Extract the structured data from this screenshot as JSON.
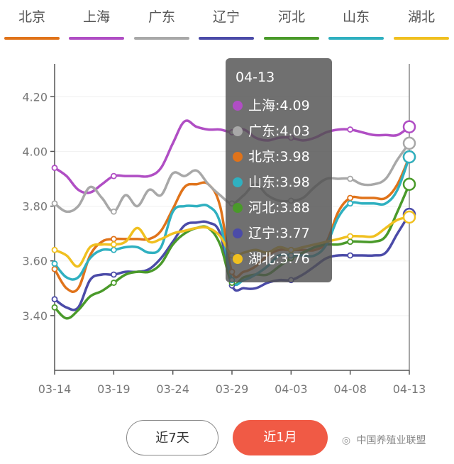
{
  "legend": [
    {
      "name": "北京",
      "color": "#e0731a"
    },
    {
      "name": "上海",
      "color": "#b04ec4"
    },
    {
      "name": "广东",
      "color": "#a8a8a8"
    },
    {
      "name": "辽宁",
      "color": "#4b4ba8"
    },
    {
      "name": "河北",
      "color": "#4a9a2a"
    },
    {
      "name": "山东",
      "color": "#2fb0c0"
    },
    {
      "name": "湖北",
      "color": "#f0c020"
    }
  ],
  "tooltip": {
    "date": "04-13",
    "rows": [
      {
        "text": "上海:4.09",
        "color": "#b04ec4"
      },
      {
        "text": "广东:4.03",
        "color": "#a8a8a8"
      },
      {
        "text": "北京:3.98",
        "color": "#e0731a"
      },
      {
        "text": "山东:3.98",
        "color": "#2fb0c0"
      },
      {
        "text": "河北:3.88",
        "color": "#4a9a2a"
      },
      {
        "text": "辽宁:3.77",
        "color": "#4b4ba8"
      },
      {
        "text": "湖北:3.76",
        "color": "#f0c020"
      }
    ]
  },
  "buttons": {
    "week": "近7天",
    "month": "近1月"
  },
  "watermark": "中国养殖业联盟",
  "chart_data": {
    "type": "line",
    "title": "",
    "xlabel": "",
    "ylabel": "",
    "ylim": [
      3.2,
      4.32
    ],
    "yticks": [
      "3.40",
      "3.60",
      "3.80",
      "4.00",
      "4.20"
    ],
    "y_ticks": [
      3.4,
      3.6,
      3.8,
      4.0,
      4.2
    ],
    "xtick_labels": [
      "03-14",
      "03-19",
      "03-24",
      "03-29",
      "04-03",
      "04-08",
      "04-13"
    ],
    "x": [
      "03-14",
      "03-15",
      "03-16",
      "03-17",
      "03-18",
      "03-19",
      "03-20",
      "03-21",
      "03-22",
      "03-23",
      "03-24",
      "03-25",
      "03-26",
      "03-27",
      "03-28",
      "03-29",
      "03-30",
      "03-31",
      "04-01",
      "04-02",
      "04-03",
      "04-04",
      "04-05",
      "04-06",
      "04-07",
      "04-08",
      "04-09",
      "04-10",
      "04-11",
      "04-12",
      "04-13"
    ],
    "series": [
      {
        "name": "北京",
        "color": "#e0731a",
        "values": [
          3.57,
          3.5,
          3.5,
          3.62,
          3.67,
          3.68,
          3.68,
          3.68,
          3.68,
          3.71,
          3.79,
          3.87,
          3.88,
          3.88,
          3.8,
          3.56,
          3.56,
          3.58,
          3.62,
          3.64,
          3.64,
          3.64,
          3.64,
          3.67,
          3.78,
          3.83,
          3.83,
          3.83,
          3.83,
          3.88,
          3.98
        ]
      },
      {
        "name": "上海",
        "color": "#b04ec4",
        "values": [
          3.94,
          3.91,
          3.86,
          3.85,
          3.88,
          3.91,
          3.91,
          3.91,
          3.91,
          3.94,
          4.03,
          4.11,
          4.09,
          4.08,
          4.08,
          4.07,
          4.08,
          4.05,
          4.04,
          4.05,
          4.05,
          4.04,
          4.05,
          4.07,
          4.08,
          4.08,
          4.07,
          4.06,
          4.06,
          4.06,
          4.09
        ]
      },
      {
        "name": "广东",
        "color": "#a8a8a8",
        "values": [
          3.81,
          3.78,
          3.8,
          3.87,
          3.83,
          3.78,
          3.84,
          3.8,
          3.86,
          3.84,
          3.92,
          3.91,
          3.93,
          3.88,
          3.84,
          3.81,
          3.84,
          3.88,
          3.84,
          3.82,
          3.82,
          3.83,
          3.87,
          3.9,
          3.9,
          3.9,
          3.88,
          3.88,
          3.9,
          3.97,
          4.03
        ]
      },
      {
        "name": "辽宁",
        "color": "#4b4ba8",
        "values": [
          3.46,
          3.43,
          3.43,
          3.53,
          3.55,
          3.55,
          3.56,
          3.56,
          3.57,
          3.61,
          3.67,
          3.73,
          3.74,
          3.74,
          3.7,
          3.51,
          3.5,
          3.5,
          3.52,
          3.53,
          3.53,
          3.55,
          3.58,
          3.61,
          3.62,
          3.62,
          3.62,
          3.62,
          3.63,
          3.7,
          3.77
        ]
      },
      {
        "name": "河北",
        "color": "#4a9a2a",
        "values": [
          3.43,
          3.39,
          3.42,
          3.47,
          3.49,
          3.52,
          3.55,
          3.56,
          3.56,
          3.59,
          3.66,
          3.7,
          3.72,
          3.72,
          3.66,
          3.52,
          3.54,
          3.55,
          3.55,
          3.58,
          3.61,
          3.63,
          3.65,
          3.66,
          3.66,
          3.67,
          3.67,
          3.67,
          3.69,
          3.78,
          3.88
        ]
      },
      {
        "name": "山东",
        "color": "#2fb0c0",
        "values": [
          3.59,
          3.54,
          3.54,
          3.61,
          3.64,
          3.64,
          3.65,
          3.65,
          3.63,
          3.65,
          3.78,
          3.8,
          3.8,
          3.8,
          3.74,
          3.53,
          3.53,
          3.55,
          3.58,
          3.62,
          3.62,
          3.62,
          3.62,
          3.66,
          3.76,
          3.81,
          3.81,
          3.81,
          3.81,
          3.86,
          3.98
        ]
      },
      {
        "name": "湖北",
        "color": "#f0c020",
        "values": [
          3.64,
          3.62,
          3.58,
          3.65,
          3.66,
          3.66,
          3.67,
          3.72,
          3.67,
          3.68,
          3.7,
          3.71,
          3.72,
          3.72,
          3.69,
          3.62,
          3.63,
          3.64,
          3.63,
          3.65,
          3.64,
          3.65,
          3.66,
          3.67,
          3.68,
          3.69,
          3.69,
          3.69,
          3.72,
          3.75,
          3.76
        ]
      }
    ]
  }
}
